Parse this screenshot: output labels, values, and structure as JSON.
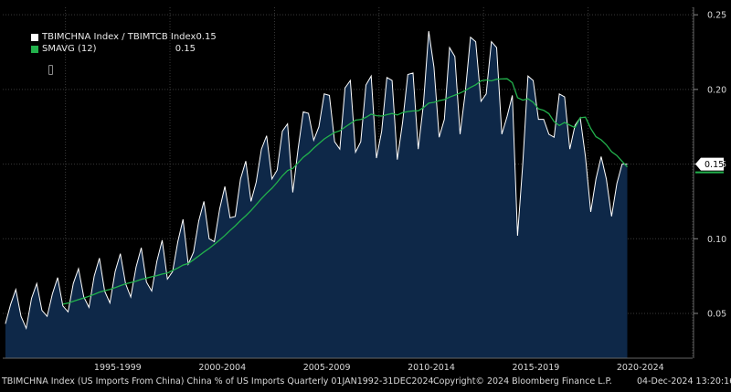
{
  "legend": {
    "series1_label": "TBIMCHNA Index / TBIMTCB Index",
    "series1_value": "0.15",
    "series2_label": "SMAVG (12)",
    "series2_value": "0.15"
  },
  "footer": {
    "description": "TBIMCHNA Index (US Imports From China) China % of US Imports  Quarterly 01JAN1992-31DEC2024",
    "copyright": "Copyright© 2024 Bloomberg Finance L.P.",
    "timestamp": "04-Dec-2024  13:20:16"
  },
  "colors": {
    "background": "#000000",
    "area_fill": "#0e2848",
    "ratio_line": "#ffffff",
    "smavg_line": "#22b14c",
    "grid": "#3a3a3a"
  },
  "chart_data": {
    "type": "line",
    "x_range": [
      "1992-Q1",
      "2024-Q4"
    ],
    "x_tick_labels": [
      "1995-1999",
      "2000-2004",
      "2005-2009",
      "2010-2014",
      "2015-2019",
      "2020-2024"
    ],
    "y_ticks": [
      "0.05",
      "0.10",
      "0.15",
      "0.20",
      "0.25"
    ],
    "ylim": [
      0.02,
      0.255
    ],
    "last_value_label": "0.15",
    "series": [
      {
        "name": "TBIMCHNA Index / TBIMTCB Index",
        "role": "ratio",
        "values": [
          0.043,
          0.056,
          0.066,
          0.048,
          0.04,
          0.06,
          0.07,
          0.052,
          0.048,
          0.063,
          0.074,
          0.055,
          0.051,
          0.07,
          0.08,
          0.061,
          0.054,
          0.075,
          0.087,
          0.065,
          0.057,
          0.078,
          0.09,
          0.07,
          0.061,
          0.081,
          0.094,
          0.071,
          0.065,
          0.085,
          0.099,
          0.073,
          0.078,
          0.098,
          0.113,
          0.083,
          0.091,
          0.112,
          0.125,
          0.1,
          0.098,
          0.12,
          0.135,
          0.114,
          0.115,
          0.14,
          0.152,
          0.125,
          0.138,
          0.16,
          0.169,
          0.14,
          0.146,
          0.172,
          0.177,
          0.131,
          0.16,
          0.185,
          0.184,
          0.166,
          0.175,
          0.197,
          0.196,
          0.165,
          0.16,
          0.201,
          0.206,
          0.158,
          0.165,
          0.203,
          0.209,
          0.154,
          0.172,
          0.208,
          0.206,
          0.153,
          0.178,
          0.21,
          0.211,
          0.16,
          0.19,
          0.239,
          0.215,
          0.168,
          0.18,
          0.228,
          0.222,
          0.17,
          0.198,
          0.235,
          0.232,
          0.192,
          0.197,
          0.232,
          0.228,
          0.17,
          0.182,
          0.196,
          0.102,
          0.15,
          0.209,
          0.206,
          0.18,
          0.18,
          0.17,
          0.168,
          0.197,
          0.195,
          0.16,
          0.176,
          0.181,
          0.155,
          0.118,
          0.14,
          0.155,
          0.14,
          0.115,
          0.137,
          0.15,
          0.15
        ]
      },
      {
        "name": "SMAVG (12)",
        "role": "moving_average",
        "period": 12
      }
    ]
  }
}
